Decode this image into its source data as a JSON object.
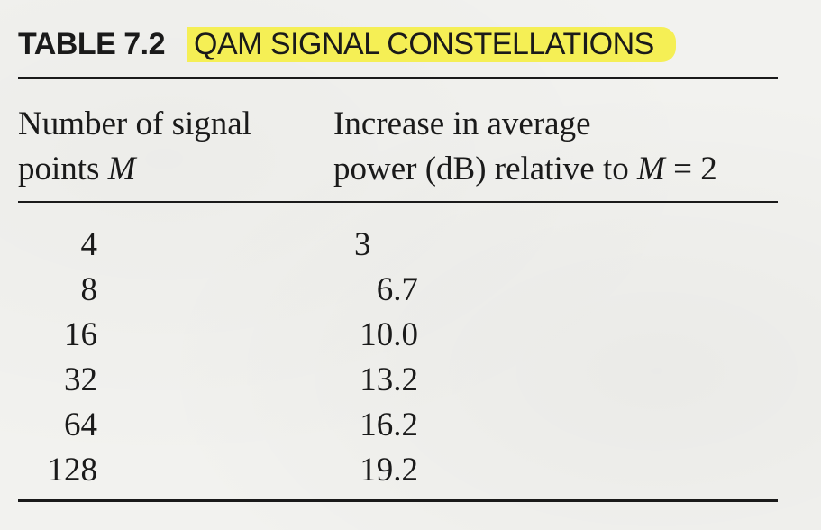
{
  "table": {
    "label": "TABLE 7.2",
    "title": "QAM SIGNAL CONSTELLATIONS",
    "columns": {
      "col1_line1": "Number of signal",
      "col1_line2_text": "points ",
      "col1_line2_var": "M",
      "col2_line1": "Increase in average",
      "col2_line2_text": "power (dB) relative to ",
      "col2_line2_var": "M",
      "col2_line2_end": " = 2"
    },
    "rows": [
      {
        "m": "4",
        "power": "3"
      },
      {
        "m": "8",
        "power": "6.7"
      },
      {
        "m": "16",
        "power": "10.0"
      },
      {
        "m": "32",
        "power": "13.2"
      },
      {
        "m": "64",
        "power": "16.2"
      },
      {
        "m": "128",
        "power": "19.2"
      }
    ],
    "highlight_color": "#f5ef55"
  }
}
